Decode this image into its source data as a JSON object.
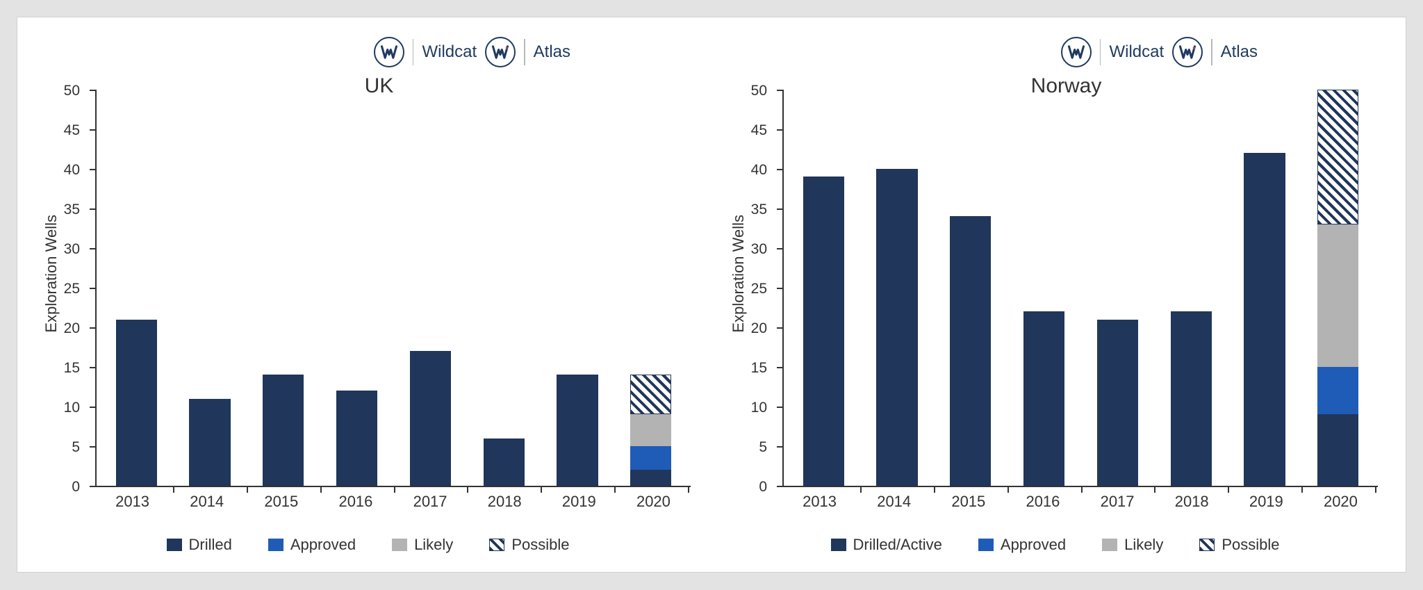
{
  "page_background": "#e3e3e3",
  "panel_background": "#ffffff",
  "text_color": "#333333",
  "axis_color": "#333333",
  "brand": {
    "items": [
      {
        "label": "Wildcat"
      },
      {
        "label": "Atlas"
      }
    ],
    "circle_border_color": "#1f3a5f",
    "label_color": "#1f3a5f",
    "label_fontsize": 24
  },
  "charts": [
    {
      "title": "UK",
      "title_fontsize": 30,
      "ylabel": "Exploration Wells",
      "ylabel_fontsize": 22,
      "ylim": [
        0,
        50
      ],
      "ytick_step": 5,
      "xlabel_fontsize": 22,
      "bar_width_pct": 56,
      "categories": [
        "2013",
        "2014",
        "2015",
        "2016",
        "2017",
        "2018",
        "2019",
        "2020"
      ],
      "series": [
        {
          "key": "drilled",
          "label": "Drilled",
          "color": "#20365a",
          "pattern": "solid"
        },
        {
          "key": "approved",
          "label": "Approved",
          "color": "#1f5cb8",
          "pattern": "solid"
        },
        {
          "key": "likely",
          "label": "Likely",
          "color": "#b3b3b3",
          "pattern": "solid"
        },
        {
          "key": "possible",
          "label": "Possible",
          "color": "#20365a",
          "pattern": "hatched"
        }
      ],
      "stacks": [
        {
          "drilled": 21,
          "approved": 0,
          "likely": 0,
          "possible": 0
        },
        {
          "drilled": 11,
          "approved": 0,
          "likely": 0,
          "possible": 0
        },
        {
          "drilled": 14,
          "approved": 0,
          "likely": 0,
          "possible": 0
        },
        {
          "drilled": 12,
          "approved": 0,
          "likely": 0,
          "possible": 0
        },
        {
          "drilled": 17,
          "approved": 0,
          "likely": 0,
          "possible": 0
        },
        {
          "drilled": 6,
          "approved": 0,
          "likely": 0,
          "possible": 0
        },
        {
          "drilled": 14,
          "approved": 0,
          "likely": 0,
          "possible": 0
        },
        {
          "drilled": 2,
          "approved": 3,
          "likely": 4,
          "possible": 5
        }
      ]
    },
    {
      "title": "Norway",
      "title_fontsize": 30,
      "ylabel": "Exploration Wells",
      "ylabel_fontsize": 22,
      "ylim": [
        0,
        50
      ],
      "ytick_step": 5,
      "xlabel_fontsize": 22,
      "bar_width_pct": 56,
      "categories": [
        "2013",
        "2014",
        "2015",
        "2016",
        "2017",
        "2018",
        "2019",
        "2020"
      ],
      "series": [
        {
          "key": "drilled",
          "label": "Drilled/Active",
          "color": "#20365a",
          "pattern": "solid"
        },
        {
          "key": "approved",
          "label": "Approved",
          "color": "#1f5cb8",
          "pattern": "solid"
        },
        {
          "key": "likely",
          "label": "Likely",
          "color": "#b3b3b3",
          "pattern": "solid"
        },
        {
          "key": "possible",
          "label": "Possible",
          "color": "#20365a",
          "pattern": "hatched"
        }
      ],
      "stacks": [
        {
          "drilled": 39,
          "approved": 0,
          "likely": 0,
          "possible": 0
        },
        {
          "drilled": 40,
          "approved": 0,
          "likely": 0,
          "possible": 0
        },
        {
          "drilled": 34,
          "approved": 0,
          "likely": 0,
          "possible": 0
        },
        {
          "drilled": 22,
          "approved": 0,
          "likely": 0,
          "possible": 0
        },
        {
          "drilled": 21,
          "approved": 0,
          "likely": 0,
          "possible": 0
        },
        {
          "drilled": 22,
          "approved": 0,
          "likely": 0,
          "possible": 0
        },
        {
          "drilled": 42,
          "approved": 0,
          "likely": 0,
          "possible": 0
        },
        {
          "drilled": 9,
          "approved": 6,
          "likely": 18,
          "possible": 17
        }
      ]
    }
  ]
}
